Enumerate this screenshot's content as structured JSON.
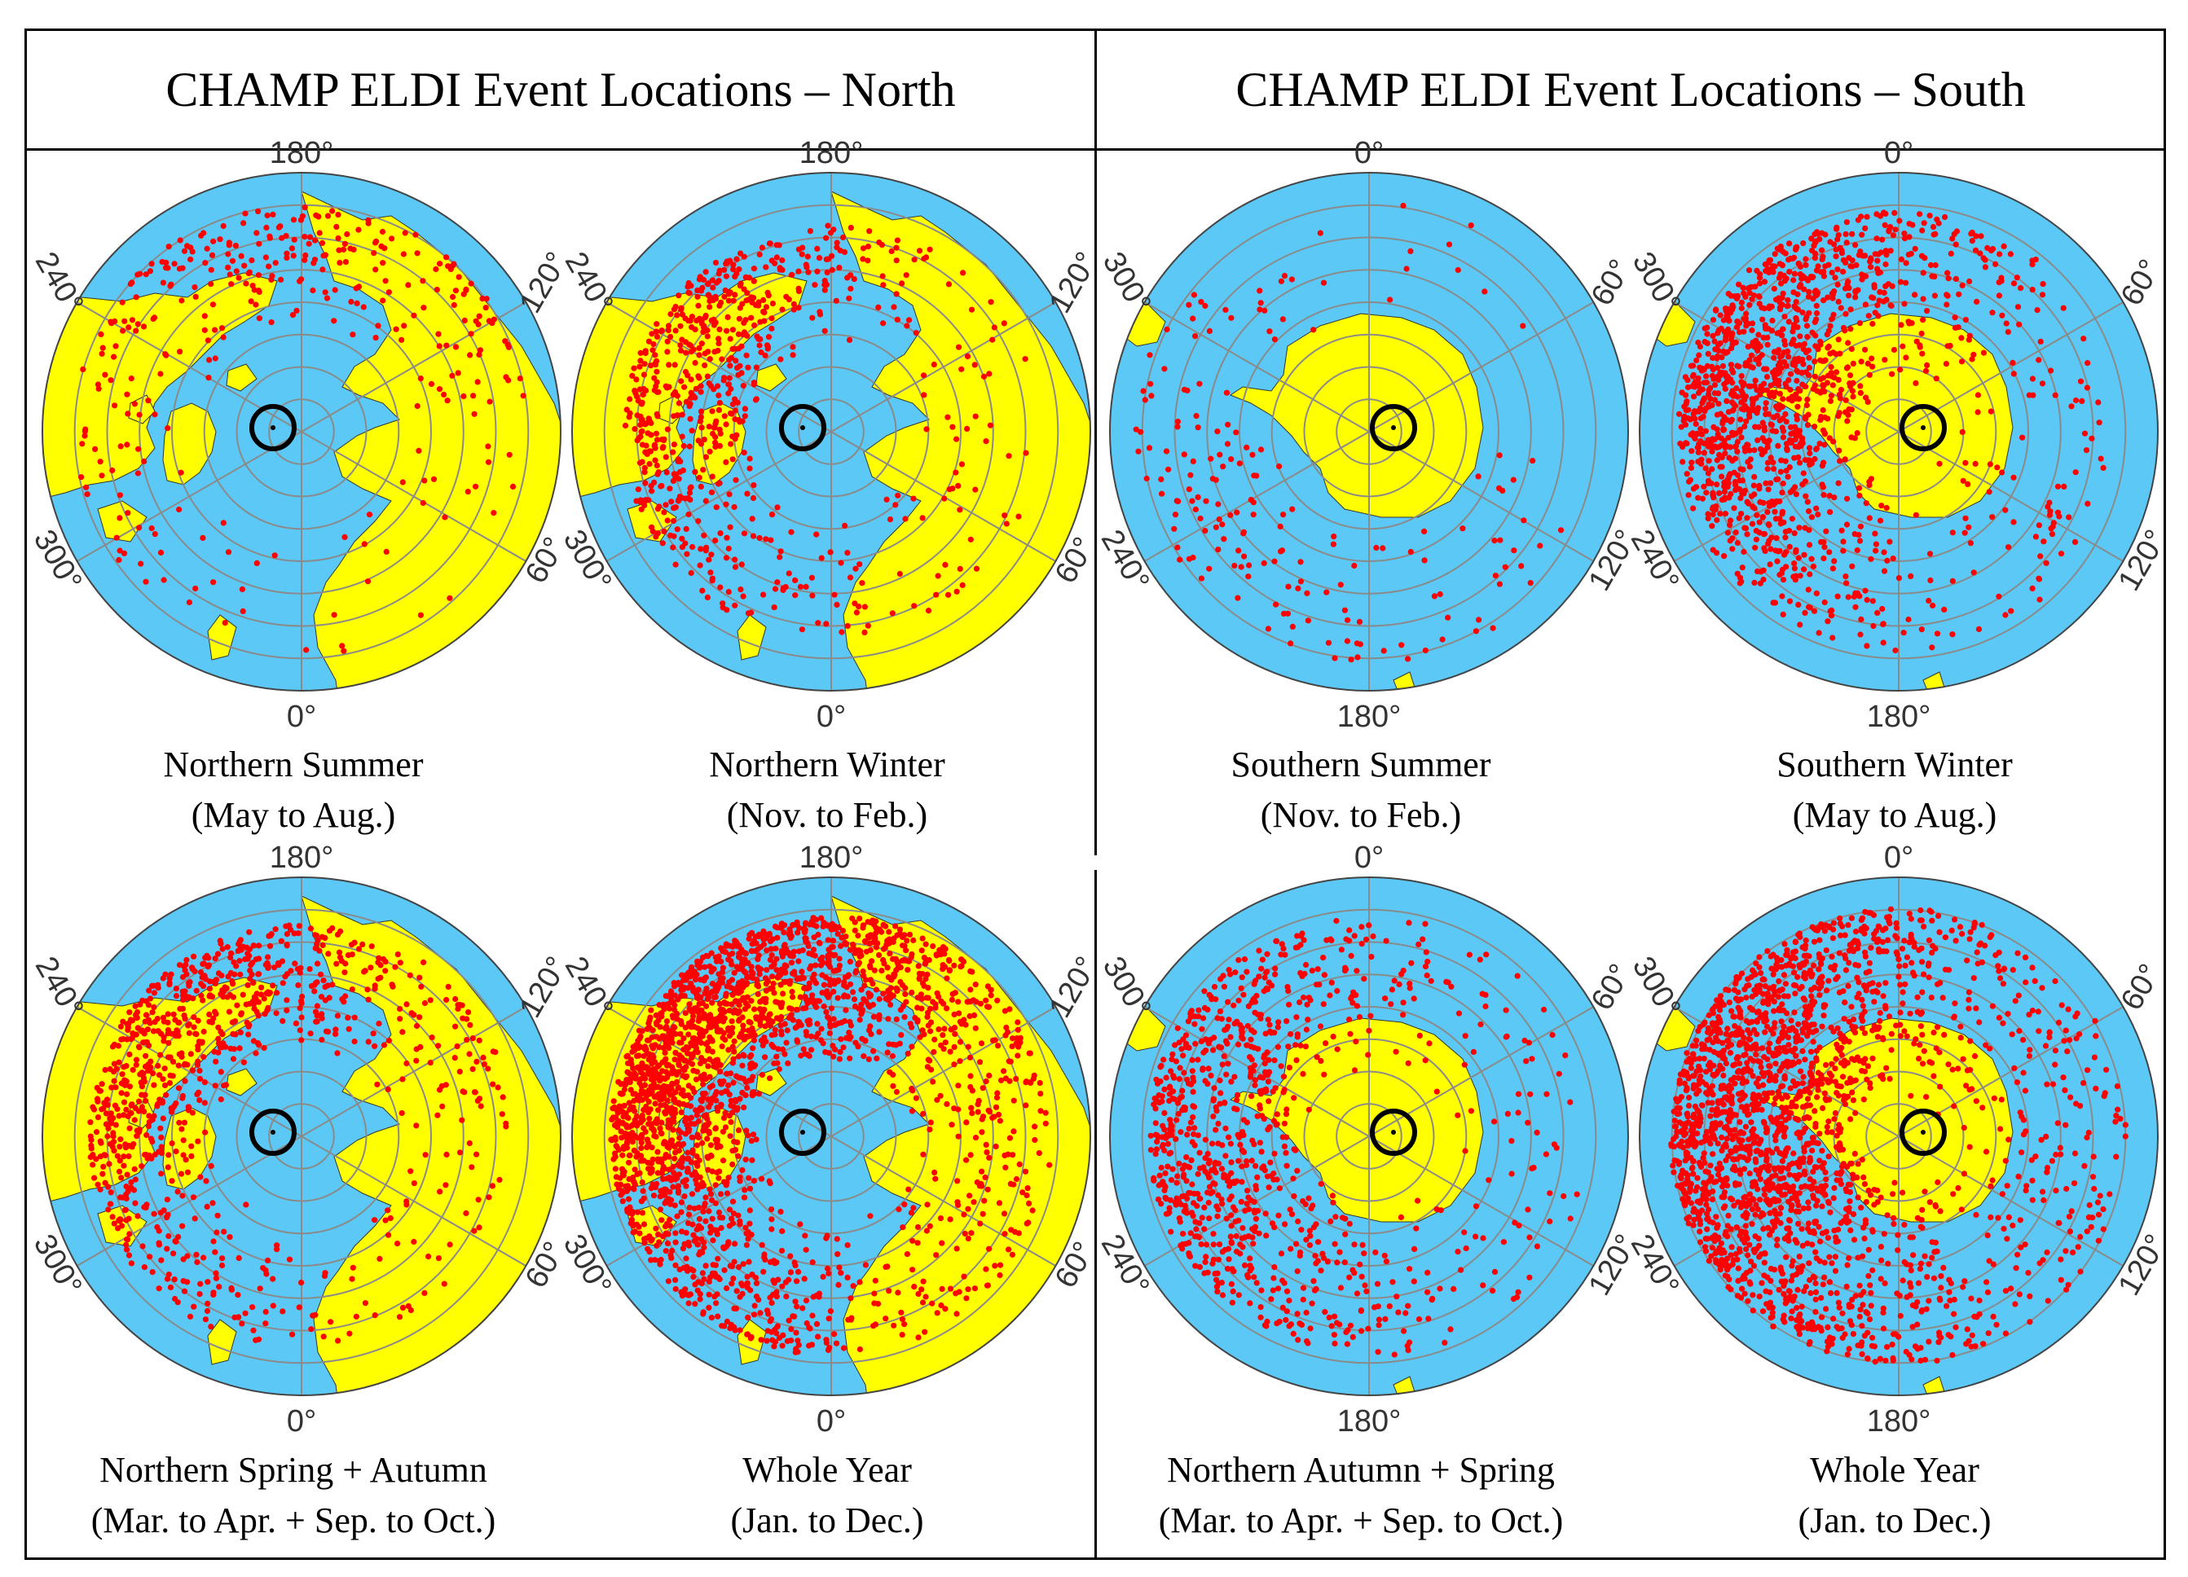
{
  "titles": {
    "north": "CHAMP ELDI Event Locations – North",
    "south": "CHAMP ELDI Event Locations – South"
  },
  "colors": {
    "ocean": "#5BC8F5",
    "land": "#FFFF00",
    "event": "#FF0000",
    "grid": "#8A8A8A",
    "frame": "#000000"
  },
  "chart_data": [
    {
      "id": "ns",
      "type": "scatter",
      "hemisphere": "north",
      "title_line1": "Northern Summer",
      "title_line2": "(May to Aug.)",
      "n_events": 330,
      "event_ring": [
        0.38,
        0.88
      ],
      "event_center_deg": 260,
      "event_spread_deg": 150,
      "ticks": [
        "180°",
        "120°",
        "60°",
        "0°",
        "300°",
        "240°"
      ]
    },
    {
      "id": "nw",
      "type": "scatter",
      "hemisphere": "north",
      "title_line1": "Northern Winter",
      "title_line2": "(Nov. to Feb.)",
      "n_events": 700,
      "event_ring": [
        0.3,
        0.8
      ],
      "event_center_deg": 200,
      "event_spread_deg": 140,
      "ticks": [
        "180°",
        "120°",
        "60°",
        "0°",
        "300°",
        "240°"
      ]
    },
    {
      "id": "ss",
      "type": "scatter",
      "hemisphere": "south",
      "title_line1": "Southern Summer",
      "title_line2": "(Nov. to Feb.)",
      "n_events": 180,
      "event_ring": [
        0.35,
        0.9
      ],
      "event_center_deg": 140,
      "event_spread_deg": 160,
      "ticks": [
        "0°",
        "60°",
        "120°",
        "180°",
        "240°",
        "300°"
      ]
    },
    {
      "id": "sw",
      "type": "scatter",
      "hemisphere": "south",
      "title_line1": "Southern Winter",
      "title_line2": "(May to Aug.)",
      "n_events": 1400,
      "event_ring": [
        0.15,
        0.85
      ],
      "event_center_deg": 200,
      "event_spread_deg": 130,
      "ticks": [
        "0°",
        "60°",
        "120°",
        "180°",
        "240°",
        "300°"
      ]
    },
    {
      "id": "nsa",
      "type": "scatter",
      "hemisphere": "north",
      "title_line1": "Northern Spring + Autumn",
      "title_line2": "(Mar. to Apr. + Sep. to Oct.)",
      "n_events": 900,
      "event_ring": [
        0.33,
        0.82
      ],
      "event_center_deg": 220,
      "event_spread_deg": 150,
      "ticks": [
        "180°",
        "120°",
        "60°",
        "0°",
        "300°",
        "240°"
      ]
    },
    {
      "id": "nwy",
      "type": "scatter",
      "hemisphere": "north",
      "title_line1": "Whole Year",
      "title_line2": "(Jan. to Dec.)",
      "n_events": 2300,
      "event_ring": [
        0.28,
        0.85
      ],
      "event_center_deg": 220,
      "event_spread_deg": 160,
      "ticks": [
        "180°",
        "120°",
        "60°",
        "0°",
        "300°",
        "240°"
      ]
    },
    {
      "id": "sas",
      "type": "scatter",
      "hemisphere": "south",
      "title_line1": "Northern Autumn + Spring",
      "title_line2": "(Mar. to Apr. + Sep. to Oct.)",
      "n_events": 900,
      "event_ring": [
        0.25,
        0.85
      ],
      "event_center_deg": 180,
      "event_spread_deg": 140,
      "ticks": [
        "0°",
        "60°",
        "120°",
        "180°",
        "240°",
        "300°"
      ]
    },
    {
      "id": "swy",
      "type": "scatter",
      "hemisphere": "south",
      "title_line1": "Whole Year",
      "title_line2": "(Jan. to Dec.)",
      "n_events": 2200,
      "event_ring": [
        0.15,
        0.88
      ],
      "event_center_deg": 190,
      "event_spread_deg": 150,
      "ticks": [
        "0°",
        "60°",
        "120°",
        "180°",
        "240°",
        "300°"
      ]
    }
  ]
}
